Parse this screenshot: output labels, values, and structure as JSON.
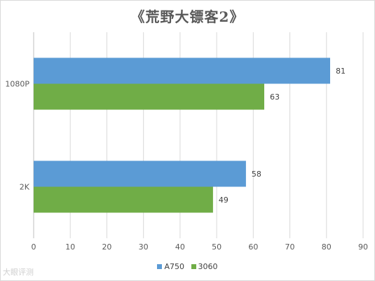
{
  "chart_data": {
    "type": "bar",
    "orientation": "horizontal",
    "title": "《荒野大镖客2》",
    "categories": [
      "1080P",
      "2K"
    ],
    "series": [
      {
        "name": "A750",
        "values": [
          81,
          58
        ],
        "color": "#5b9bd5"
      },
      {
        "name": "3060",
        "values": [
          63,
          49
        ],
        "color": "#70ad47"
      }
    ],
    "xlim": [
      0,
      90
    ],
    "x_ticks": [
      0,
      10,
      20,
      30,
      40,
      50,
      60,
      70,
      80,
      90
    ],
    "grid": true,
    "legend_position": "bottom"
  },
  "watermark": "大眼评测"
}
